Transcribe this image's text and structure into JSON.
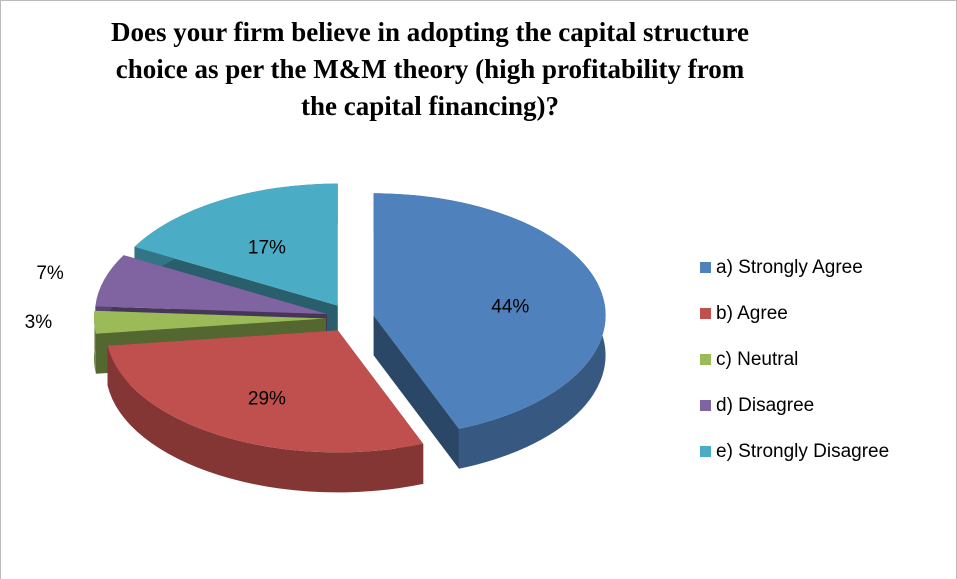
{
  "chart_data": {
    "type": "pie",
    "title": "Does your firm believe in adopting the capital structure choice as per the M&M theory (high profitability from the capital financing)?",
    "categories": [
      "a) Strongly Agree",
      "b) Agree",
      "c) Neutral",
      "d) Disagree",
      "e) Strongly Disagree"
    ],
    "values": [
      44,
      29,
      3,
      7,
      17
    ],
    "value_labels": [
      "44%",
      "29%",
      "3%",
      "7%",
      "17%"
    ],
    "colors": [
      "#4f81bd",
      "#c0504d",
      "#9bbb59",
      "#8064a2",
      "#4bacc6"
    ],
    "legend": "right"
  }
}
